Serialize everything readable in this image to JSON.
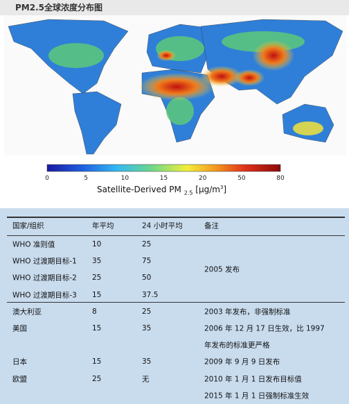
{
  "header": {
    "title": "PM2.5全球浓度分布图"
  },
  "colorbar": {
    "ticks": [
      0,
      5,
      10,
      15,
      20,
      50,
      80
    ],
    "label": "Satellite-Derived PM",
    "label_sub": "2.5",
    "label_unit": "[μg/m",
    "label_sup": "3",
    "label_end": "]"
  },
  "table": {
    "header": [
      "国家/组织",
      "年平均",
      "24 小时平均",
      "备注"
    ],
    "groups": [
      {
        "rows": [
          [
            "WHO 准则值",
            "10",
            "25"
          ],
          [
            "WHO 过渡期目标-1",
            "35",
            "75"
          ],
          [
            "WHO 过渡期目标-2",
            "25",
            "50"
          ],
          [
            "WHO 过渡期目标-3",
            "15",
            "37.5"
          ]
        ],
        "note": [
          "2005 发布"
        ]
      },
      {
        "rows": [
          [
            "澳大利亚",
            "8",
            "25"
          ]
        ],
        "note": [
          "2003 年发布，非强制标准"
        ]
      },
      {
        "rows": [
          [
            "美国",
            "15",
            "35"
          ]
        ],
        "note": [
          "2006 年 12 月 17 日生效，比 1997",
          "年发布的标准更严格"
        ]
      },
      {
        "rows": [
          [
            "日本",
            "15",
            "35"
          ]
        ],
        "note": [
          "2009 年 9 月 9 日发布"
        ]
      },
      {
        "rows": [
          [
            "欧盟",
            "25",
            "无"
          ]
        ],
        "note": [
          "2010 年 1 月 1 日发布目标值",
          "2015 年 1 月 1 日强制标准生效"
        ]
      }
    ]
  }
}
